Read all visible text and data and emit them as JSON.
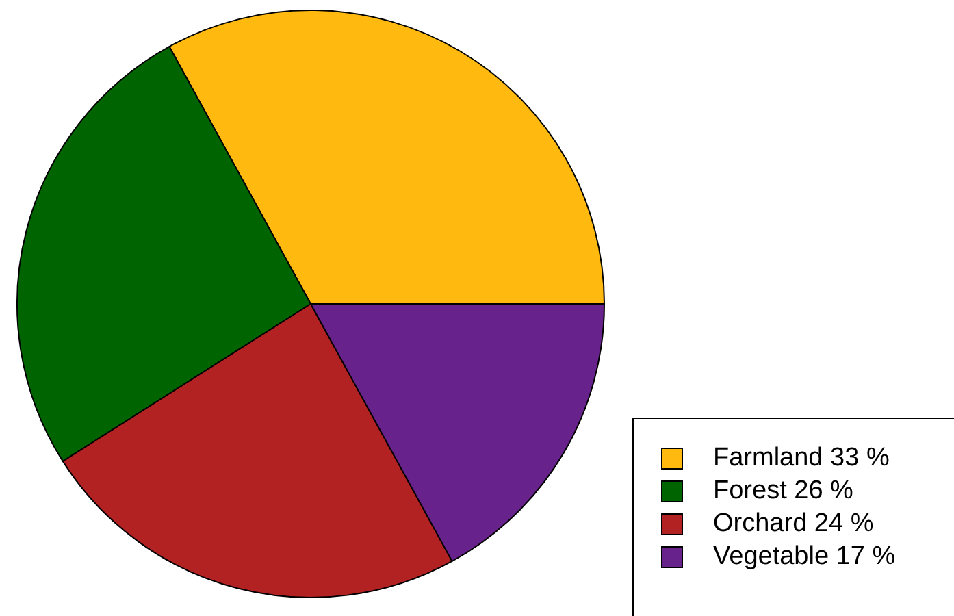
{
  "chart_data": {
    "type": "pie",
    "categories": [
      "Farmland 33 %",
      "Forest 26 %",
      "Orchard 24 %",
      "Vegetable 17 %"
    ],
    "values": [
      33,
      26,
      24,
      17
    ],
    "colors": [
      "#ffb90f",
      "#006400",
      "#b22222",
      "#68228b"
    ],
    "legend": "bottom right"
  }
}
